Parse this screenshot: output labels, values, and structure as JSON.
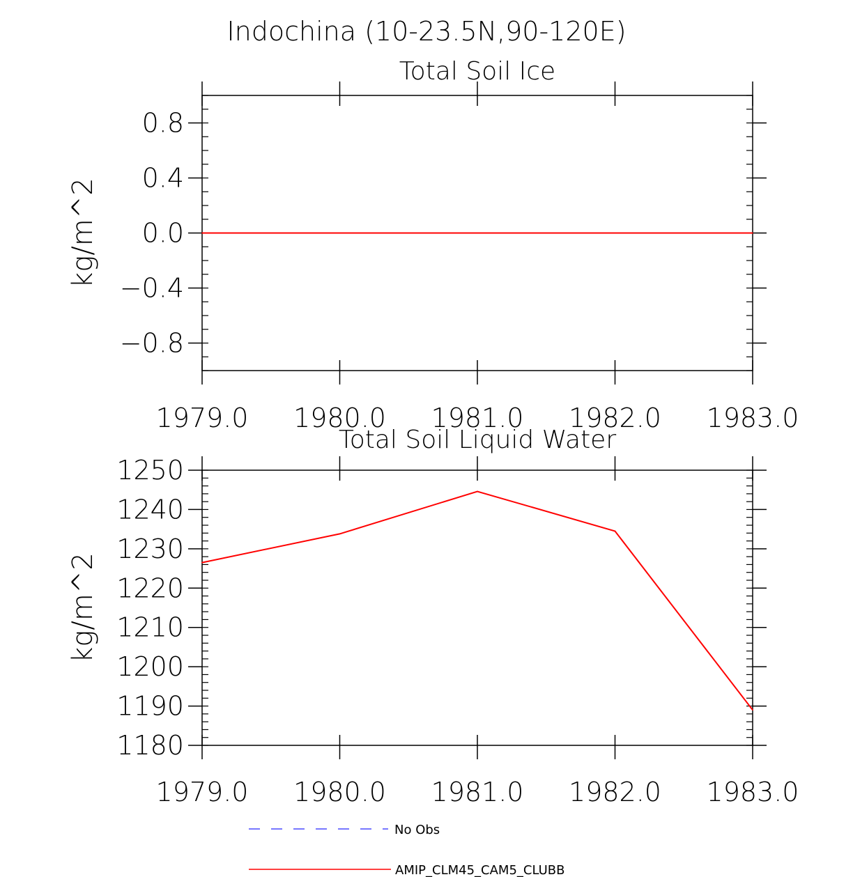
{
  "figure_title": "Indochina (10-23.5N,90-120E)",
  "chart_data": [
    {
      "type": "line",
      "title": "Total Soil Ice",
      "xlabel": "",
      "ylabel": "kg/m^2",
      "xlim": [
        1979.0,
        1983.0
      ],
      "ylim": [
        -1.0,
        1.0
      ],
      "x_ticks": [
        "1979.0",
        "1980.0",
        "1981.0",
        "1982.0",
        "1983.0"
      ],
      "x_tick_values": [
        1979,
        1980,
        1981,
        1982,
        1983
      ],
      "y_ticks": [
        "0.8",
        "0.4",
        "0.0",
        "−0.4",
        "−0.8"
      ],
      "y_tick_values": [
        0.8,
        0.4,
        0.0,
        -0.4,
        -0.8
      ],
      "grid": false,
      "series": [
        {
          "name": "AMIP_CLM45_CAM5_CLUBB",
          "color": "#ff0000",
          "x": [
            1979,
            1980,
            1981,
            1982,
            1983
          ],
          "values": [
            0,
            0,
            0,
            0,
            0
          ]
        }
      ]
    },
    {
      "type": "line",
      "title": "Total Soil Liquid Water",
      "xlabel": "",
      "ylabel": "kg/m^2",
      "xlim": [
        1979.0,
        1983.0
      ],
      "ylim": [
        1180,
        1250
      ],
      "x_ticks": [
        "1979.0",
        "1980.0",
        "1981.0",
        "1982.0",
        "1983.0"
      ],
      "x_tick_values": [
        1979,
        1980,
        1981,
        1982,
        1983
      ],
      "y_ticks": [
        "1250",
        "1240",
        "1230",
        "1220",
        "1210",
        "1200",
        "1190",
        "1180"
      ],
      "y_tick_values": [
        1250,
        1240,
        1230,
        1220,
        1210,
        1200,
        1190,
        1180
      ],
      "grid": false,
      "series": [
        {
          "name": "AMIP_CLM45_CAM5_CLUBB",
          "color": "#ff0000",
          "x": [
            1979,
            1980,
            1981,
            1982,
            1983
          ],
          "values": [
            1226.5,
            1233.8,
            1244.6,
            1234.5,
            1189.0
          ]
        }
      ]
    }
  ],
  "legend": {
    "placement": "bottom",
    "items": [
      {
        "label": "No Obs",
        "color": "#4a4aff",
        "style": "dashed"
      },
      {
        "label": "AMIP_CLM45_CAM5_CLUBB",
        "color": "#ff0000",
        "style": "solid"
      }
    ]
  }
}
